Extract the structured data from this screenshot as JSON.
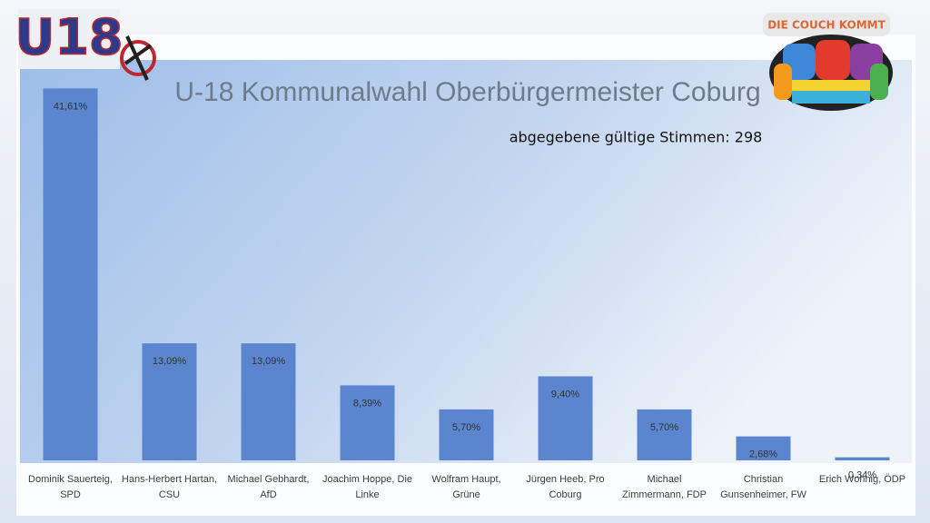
{
  "logo_left": "U18",
  "logo_right": "DIE COUCH KOMMT",
  "chart_data": {
    "type": "bar",
    "title": "U-18 Kommunalwahl Oberbürgermeister Coburg",
    "subtitle": "abgegebene gültige Stimmen: 298",
    "categories": [
      "Dominik Sauerteig, SPD",
      "Hans-Herbert Hartan, CSU",
      "Michael Gebhardt, AfD",
      "Joachim Hoppe, Die Linke",
      "Wolfram Haupt, Grüne",
      "Jürgen Heeb, Pro Coburg",
      "Michael Zimmermann, FDP",
      "Christian Gunsenheimer, FW",
      "Erich Wohnig, ÖDP"
    ],
    "values": [
      41.61,
      13.09,
      13.09,
      8.39,
      5.7,
      9.4,
      5.7,
      2.68,
      0.34
    ],
    "value_labels": [
      "41,61%",
      "13,09%",
      "13,09%",
      "8,39%",
      "5,70%",
      "9,40%",
      "5,70%",
      "2,68%",
      "0,34%"
    ],
    "color": "#5b86cf",
    "ylim": [
      0,
      45
    ],
    "grid": false
  }
}
